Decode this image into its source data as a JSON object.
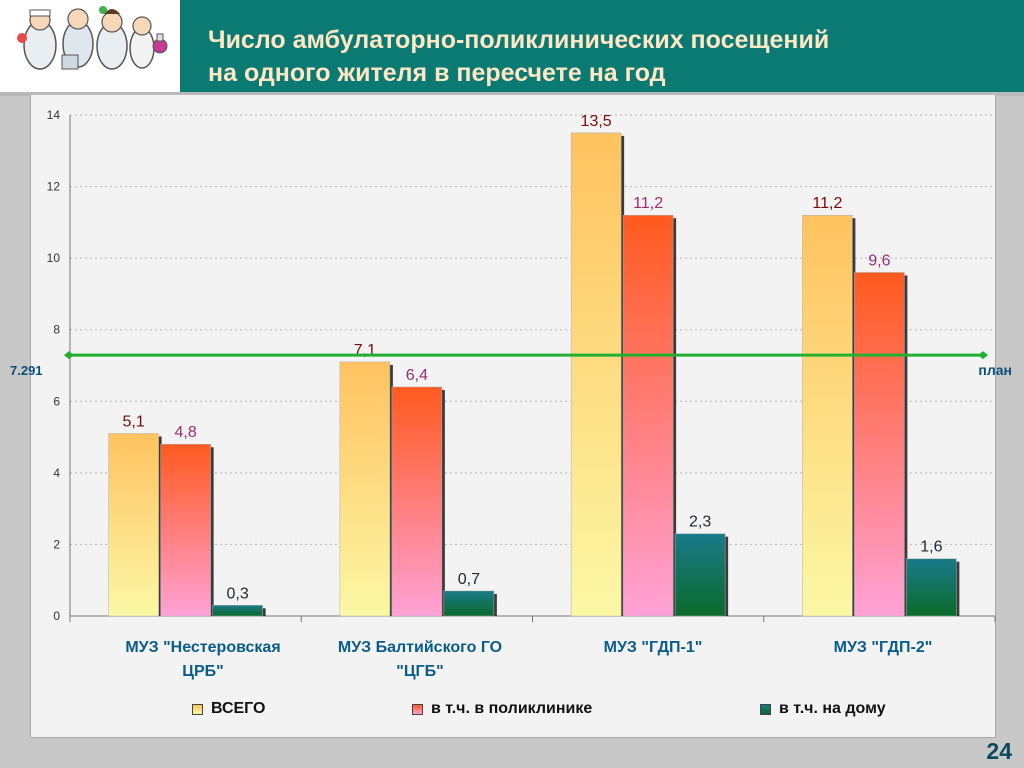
{
  "header": {
    "title_line1": "Число амбулаторно-поликлинических посещений",
    "title_line2": "на одного жителя в пересчете на год"
  },
  "page_number": "24",
  "chart_data": {
    "type": "bar",
    "categories": [
      "МУЗ \"Нестеровская ЦРБ\"",
      "МУЗ Балтийского ГО \"ЦГБ\"",
      "МУЗ \"ГДП-1\"",
      "МУЗ \"ГДП-2\""
    ],
    "category_label_lines": [
      [
        "МУЗ \"Нестеровская",
        "ЦРБ\""
      ],
      [
        "МУЗ Балтийского ГО",
        "\"ЦГБ\""
      ],
      [
        "МУЗ \"ГДП-1\""
      ],
      [
        "МУЗ \"ГДП-2\""
      ]
    ],
    "series": [
      {
        "name": "ВСЕГО",
        "values": [
          5.1,
          7.1,
          13.5,
          11.2
        ],
        "labels": [
          "5,1",
          "7,1",
          "13,5",
          "11,2"
        ],
        "label_color": "#7a0a0a"
      },
      {
        "name": "в т.ч. в поликлинике",
        "values": [
          4.8,
          6.4,
          11.2,
          9.6
        ],
        "labels": [
          "4,8",
          "6,4",
          "11,2",
          "9,6"
        ],
        "label_color": "#9a2f72"
      },
      {
        "name": "в т.ч. на дому",
        "values": [
          0.3,
          0.7,
          2.3,
          1.6
        ],
        "labels": [
          "0,3",
          "0,7",
          "2,3",
          "1,6"
        ],
        "label_color": "#1a2a35"
      }
    ],
    "ylim": [
      0,
      14
    ],
    "yticks": [
      0,
      2,
      4,
      6,
      8,
      10,
      12,
      14
    ],
    "grid": true,
    "legend_position": "bottom",
    "reference_line": {
      "value": 7.291,
      "value_label": "7.291",
      "label": "план",
      "color": "#22b030"
    },
    "colors": {
      "series1_top": "#ffc260",
      "series1_bottom": "#fbf8a5",
      "series2_top": "#ff5a1f",
      "series2_bottom": "#ffa2d6",
      "series3_top": "#1a7a8a",
      "series3_bottom": "#0a6a2a",
      "axis_text": "#333333",
      "category_text": "#0a5d8a"
    }
  }
}
